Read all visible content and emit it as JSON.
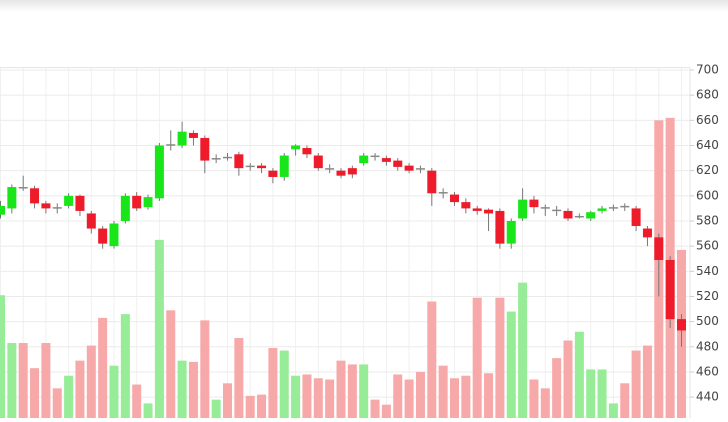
{
  "chart_data": {
    "type": "candlestick",
    "open": [
      585,
      590,
      607,
      606,
      594,
      591,
      592,
      600,
      586,
      574,
      560,
      580,
      600,
      591,
      598,
      641,
      640,
      650,
      646,
      629,
      631,
      633,
      624,
      624,
      620,
      615,
      637,
      638,
      632,
      622,
      620,
      622,
      626,
      632,
      630,
      628,
      624,
      622,
      620,
      603,
      601,
      595,
      590,
      589,
      588,
      562,
      582,
      597,
      591,
      589,
      588,
      583,
      582,
      588,
      590,
      592,
      590,
      574,
      567,
      549,
      502
    ],
    "high": [
      596,
      609,
      616,
      608,
      596,
      594,
      602,
      601,
      588,
      576,
      580,
      602,
      603,
      601,
      642,
      652,
      659,
      652,
      648,
      633,
      634,
      635,
      626,
      626,
      622,
      634,
      641,
      640,
      634,
      625,
      622,
      624,
      634,
      634,
      632,
      630,
      626,
      624,
      622,
      606,
      603,
      598,
      592,
      590,
      590,
      582,
      606,
      600,
      593,
      592,
      590,
      586,
      588,
      592,
      593,
      594,
      592,
      576,
      570,
      552,
      506
    ],
    "low": [
      582,
      586,
      604,
      590,
      586,
      586,
      590,
      584,
      570,
      558,
      558,
      578,
      588,
      589,
      596,
      636,
      638,
      640,
      618,
      626,
      628,
      616,
      620,
      618,
      610,
      612,
      632,
      630,
      620,
      618,
      614,
      614,
      624,
      628,
      624,
      620,
      618,
      618,
      592,
      598,
      592,
      586,
      585,
      572,
      558,
      558,
      580,
      586,
      584,
      584,
      580,
      582,
      580,
      586,
      588,
      588,
      572,
      560,
      520,
      495,
      480
    ],
    "close": [
      592,
      607,
      606,
      594,
      590,
      590,
      600,
      588,
      574,
      562,
      578,
      600,
      590,
      599,
      640,
      640,
      651,
      646,
      628,
      630,
      630,
      622,
      623,
      622,
      615,
      632,
      640,
      633,
      622,
      621,
      616,
      617,
      632,
      631,
      627,
      623,
      620,
      621,
      602,
      602,
      595,
      590,
      588,
      586,
      562,
      580,
      597,
      591,
      590,
      588,
      582,
      584,
      587,
      590,
      591,
      591,
      576,
      567,
      549,
      502,
      493
    ],
    "volume": [
      521,
      483,
      483,
      463,
      483,
      447,
      457,
      469,
      481,
      503,
      465,
      506,
      450,
      435,
      565,
      509,
      469,
      468,
      501,
      438,
      451,
      487,
      441,
      442,
      479,
      477,
      457,
      458,
      455,
      454,
      469,
      466,
      466,
      438,
      434,
      458,
      454,
      460,
      516,
      465,
      455,
      457,
      519,
      459,
      519,
      508,
      531,
      454,
      447,
      471,
      485,
      492,
      462,
      462,
      435,
      451,
      477,
      481,
      660,
      662,
      557
    ],
    "up_color": "#19e619",
    "down_color": "#ee1b2b",
    "volume_up_color": "#97ec97",
    "volume_down_color": "#f7a8a8",
    "ylim": [
      425,
      702
    ],
    "yticks": [
      440,
      460,
      480,
      500,
      520,
      540,
      560,
      580,
      600,
      620,
      640,
      660,
      680,
      700
    ],
    "grid": true
  }
}
